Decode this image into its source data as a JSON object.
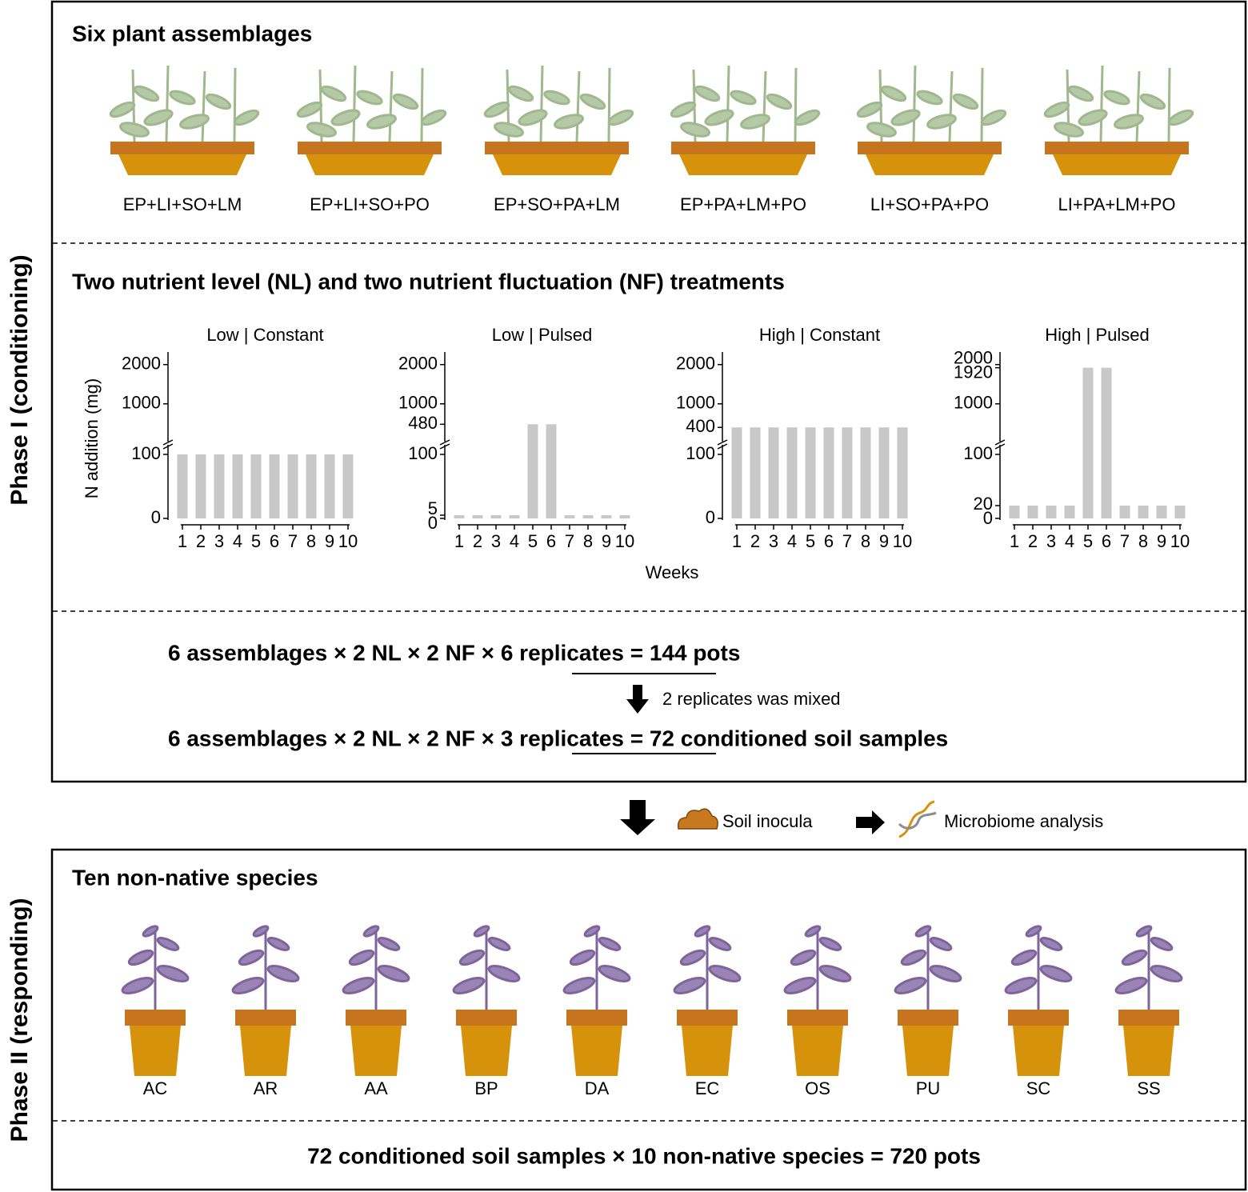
{
  "phase1": {
    "label": "Phase I (conditioning)",
    "assemblages_title": "Six plant assemblages",
    "assemblages": [
      "EP+LI+SO+LM",
      "EP+LI+SO+PO",
      "EP+SO+PA+LM",
      "EP+PA+LM+PO",
      "LI+SO+PA+PO",
      "LI+PA+LM+PO"
    ],
    "nutrient_title": "Two nutrient level (NL) and two nutrient fluctuation (NF) treatments",
    "y_axis_label": "N addition (mg)",
    "x_axis_label": "Weeks",
    "design_pots": "6 assemblages × 2 NL × 2 NF × 6 replicates = 144 pots",
    "mixing_note": "2 replicates was mixed",
    "design_samples": "6 assemblages × 2 NL × 2 NF × 3 replicates = 72 conditioned soil samples"
  },
  "flow": {
    "inocula": "Soil inocula",
    "analysis": "Microbiome analysis"
  },
  "phase2": {
    "label": "Phase II (responding)",
    "species_title": "Ten non-native species",
    "species": [
      "AC",
      "AR",
      "AA",
      "BP",
      "DA",
      "EC",
      "OS",
      "PU",
      "SC",
      "SS"
    ],
    "design_pots": "72 conditioned soil samples × 10 non-native species = 720 pots"
  },
  "chart_data": [
    {
      "type": "bar",
      "title": "Low | Constant",
      "categories": [
        "1",
        "2",
        "3",
        "4",
        "5",
        "6",
        "7",
        "8",
        "9",
        "10"
      ],
      "values": [
        100,
        100,
        100,
        100,
        100,
        100,
        100,
        100,
        100,
        100
      ],
      "color": "#c8c8c8",
      "ylim": [
        0,
        2320
      ],
      "ybreak": [
        110,
        120
      ],
      "yticks": [
        0,
        100,
        1000,
        2000
      ]
    },
    {
      "type": "bar",
      "title": "Low | Pulsed",
      "categories": [
        "1",
        "2",
        "3",
        "4",
        "5",
        "6",
        "7",
        "8",
        "9",
        "10"
      ],
      "values": [
        5,
        5,
        5,
        5,
        480,
        480,
        5,
        5,
        5,
        5
      ],
      "color": "#c8c8c8",
      "ylim": [
        0,
        2320
      ],
      "ybreak": [
        110,
        120
      ],
      "yticks": [
        0,
        5,
        100,
        480,
        1000,
        2000
      ]
    },
    {
      "type": "bar",
      "title": "High | Constant",
      "categories": [
        "1",
        "2",
        "3",
        "4",
        "5",
        "6",
        "7",
        "8",
        "9",
        "10"
      ],
      "values": [
        400,
        400,
        400,
        400,
        400,
        400,
        400,
        400,
        400,
        400
      ],
      "color": "#c8c8c8",
      "ylim": [
        0,
        2320
      ],
      "ybreak": [
        110,
        120
      ],
      "yticks": [
        0,
        100,
        400,
        1000,
        2000
      ]
    },
    {
      "type": "bar",
      "title": "High | Pulsed",
      "categories": [
        "1",
        "2",
        "3",
        "4",
        "5",
        "6",
        "7",
        "8",
        "9",
        "10"
      ],
      "values": [
        20,
        20,
        20,
        20,
        1920,
        1920,
        20,
        20,
        20,
        20
      ],
      "color": "#c8c8c8",
      "ylim": [
        0,
        2320
      ],
      "ybreak": [
        110,
        120
      ],
      "yticks": [
        0,
        20,
        100,
        1000,
        1920,
        2000
      ]
    }
  ]
}
